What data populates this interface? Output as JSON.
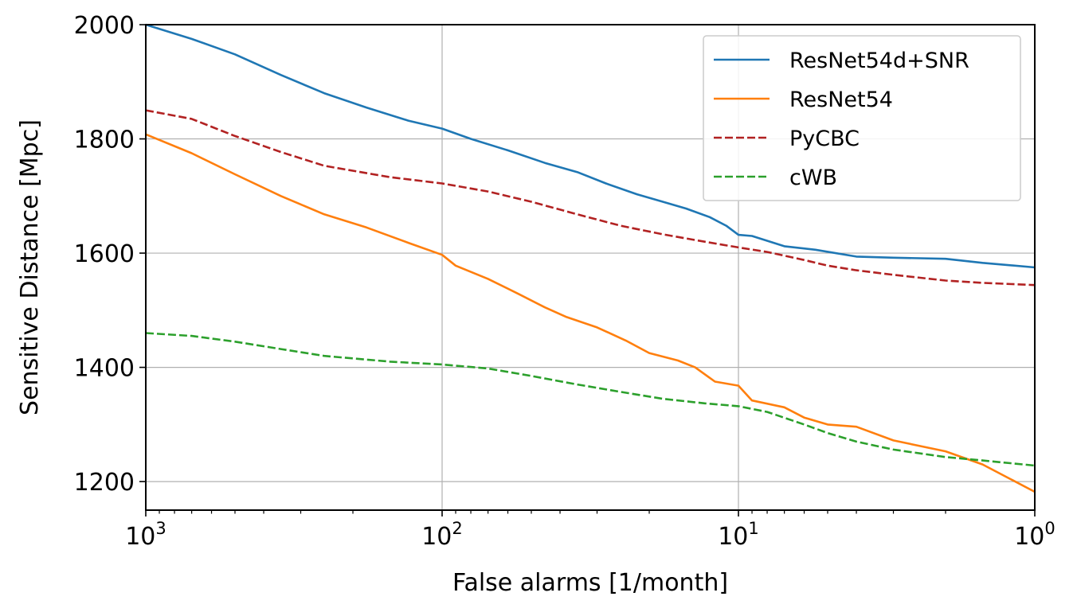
{
  "chart_data": {
    "type": "line",
    "title": "",
    "xlabel": "False alarms [1/month]",
    "ylabel": "Sensitive Distance [Mpc]",
    "xscale": "log",
    "xaxis_inverted": true,
    "xlim": [
      1000,
      1
    ],
    "ylim": [
      1150,
      2000
    ],
    "x_ticks": [
      {
        "value": 1000,
        "base": "10",
        "exp": "3"
      },
      {
        "value": 100,
        "base": "10",
        "exp": "2"
      },
      {
        "value": 10,
        "base": "10",
        "exp": "1"
      },
      {
        "value": 1,
        "base": "10",
        "exp": "0"
      }
    ],
    "y_ticks": [
      1200,
      1400,
      1600,
      1800,
      2000
    ],
    "grid": true,
    "legend_position": "top-right",
    "series": [
      {
        "name": "ResNet54d+SNR",
        "color": "#1f77b4",
        "dash": "solid",
        "points": [
          [
            1000,
            2000
          ],
          [
            700,
            1975
          ],
          [
            500,
            1948
          ],
          [
            350,
            1912
          ],
          [
            250,
            1880
          ],
          [
            180,
            1855
          ],
          [
            130,
            1832
          ],
          [
            100,
            1818
          ],
          [
            80,
            1800
          ],
          [
            60,
            1780
          ],
          [
            45,
            1758
          ],
          [
            35,
            1742
          ],
          [
            28,
            1722
          ],
          [
            22,
            1703
          ],
          [
            18,
            1690
          ],
          [
            15,
            1678
          ],
          [
            12.5,
            1663
          ],
          [
            11,
            1648
          ],
          [
            10,
            1632
          ],
          [
            9,
            1630
          ],
          [
            7,
            1612
          ],
          [
            5.5,
            1606
          ],
          [
            4,
            1594
          ],
          [
            3,
            1592
          ],
          [
            2,
            1590
          ],
          [
            1.5,
            1583
          ],
          [
            1,
            1575
          ]
        ]
      },
      {
        "name": "ResNet54",
        "color": "#ff7f0e",
        "dash": "solid",
        "points": [
          [
            1000,
            1808
          ],
          [
            700,
            1775
          ],
          [
            500,
            1738
          ],
          [
            350,
            1700
          ],
          [
            250,
            1668
          ],
          [
            180,
            1645
          ],
          [
            130,
            1618
          ],
          [
            100,
            1597
          ],
          [
            90,
            1578
          ],
          [
            70,
            1555
          ],
          [
            55,
            1528
          ],
          [
            45,
            1505
          ],
          [
            38,
            1488
          ],
          [
            30,
            1470
          ],
          [
            24,
            1447
          ],
          [
            20,
            1425
          ],
          [
            16,
            1412
          ],
          [
            14,
            1400
          ],
          [
            12,
            1375
          ],
          [
            10,
            1368
          ],
          [
            9,
            1342
          ],
          [
            7,
            1330
          ],
          [
            6,
            1312
          ],
          [
            5,
            1300
          ],
          [
            4,
            1296
          ],
          [
            3,
            1272
          ],
          [
            2,
            1253
          ],
          [
            1.5,
            1230
          ],
          [
            1,
            1182
          ]
        ]
      },
      {
        "name": "PyCBC",
        "color": "#b22222",
        "dash": "dashed",
        "points": [
          [
            1000,
            1850
          ],
          [
            700,
            1835
          ],
          [
            500,
            1805
          ],
          [
            350,
            1777
          ],
          [
            250,
            1753
          ],
          [
            150,
            1733
          ],
          [
            100,
            1722
          ],
          [
            70,
            1708
          ],
          [
            50,
            1690
          ],
          [
            35,
            1668
          ],
          [
            25,
            1648
          ],
          [
            18,
            1633
          ],
          [
            13,
            1620
          ],
          [
            10,
            1610
          ],
          [
            8,
            1602
          ],
          [
            6,
            1588
          ],
          [
            5,
            1578
          ],
          [
            4,
            1570
          ],
          [
            3,
            1562
          ],
          [
            2,
            1552
          ],
          [
            1.5,
            1548
          ],
          [
            1,
            1544
          ]
        ]
      },
      {
        "name": "cWB",
        "color": "#2ca02c",
        "dash": "dashed",
        "points": [
          [
            1000,
            1460
          ],
          [
            700,
            1455
          ],
          [
            500,
            1445
          ],
          [
            350,
            1432
          ],
          [
            250,
            1420
          ],
          [
            150,
            1410
          ],
          [
            100,
            1405
          ],
          [
            70,
            1398
          ],
          [
            50,
            1385
          ],
          [
            35,
            1370
          ],
          [
            25,
            1357
          ],
          [
            18,
            1345
          ],
          [
            13,
            1337
          ],
          [
            10,
            1332
          ],
          [
            8,
            1322
          ],
          [
            6,
            1300
          ],
          [
            5,
            1285
          ],
          [
            4,
            1270
          ],
          [
            3,
            1256
          ],
          [
            2,
            1243
          ],
          [
            1.5,
            1237
          ],
          [
            1,
            1228
          ]
        ]
      }
    ]
  }
}
